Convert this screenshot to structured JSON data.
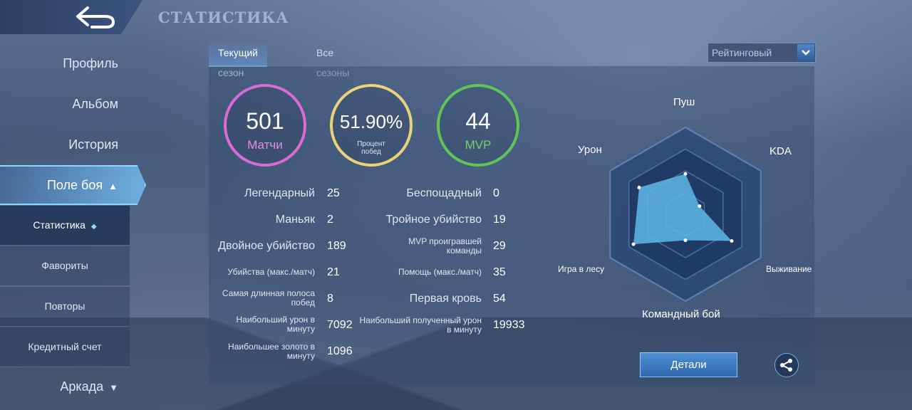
{
  "header": {
    "title": "СТАТИСТИКА"
  },
  "sidebar": {
    "items": [
      {
        "label": "Профиль"
      },
      {
        "label": "Альбом"
      },
      {
        "label": "История"
      },
      {
        "label": "Поле боя"
      }
    ],
    "sub_items": [
      {
        "label": "Статистика"
      },
      {
        "label": "Фавориты"
      },
      {
        "label": "Повторы"
      },
      {
        "label": "Кредитный счет"
      }
    ],
    "arcade": "Аркада"
  },
  "tabs": [
    {
      "label": "Текущий сезон"
    },
    {
      "label": "Все сезоны"
    }
  ],
  "mode_select": {
    "value": "Рейтинговый"
  },
  "summary": {
    "matches": {
      "value": "501",
      "label": "Матчи"
    },
    "winrate": {
      "value": "51.90%",
      "label": "Процент побед"
    },
    "mvp": {
      "value": "44",
      "label": "MVP"
    }
  },
  "stats_left": [
    {
      "label": "Легендарный",
      "value": "25"
    },
    {
      "label": "Маньяк",
      "value": "2"
    },
    {
      "label": "Двойное убийство",
      "value": "189"
    },
    {
      "label": "Убийства (макс./матч)",
      "value": "21"
    },
    {
      "label": "Самая длинная полоса побед",
      "value": "8"
    },
    {
      "label": "Наибольший урон в минуту",
      "value": "7092"
    },
    {
      "label": "Наибольшее золото в минуту",
      "value": "1096"
    }
  ],
  "stats_right": [
    {
      "label": "Беспощадный",
      "value": "0"
    },
    {
      "label": "Тройное убийство",
      "value": "19"
    },
    {
      "label": "MVP проигравшей команды",
      "value": "29"
    },
    {
      "label": "Помощь (макс./матч)",
      "value": "35"
    },
    {
      "label": "Первая кровь",
      "value": "54"
    },
    {
      "label": "Наибольший полученный урон в минуту",
      "value": "19933"
    }
  ],
  "radar": {
    "axes": [
      "Пуш",
      "KDA",
      "Выживание",
      "Командный бой",
      "Игра в лесу",
      "Урон"
    ],
    "values": [
      0.62,
      0.25,
      0.82,
      0.4,
      0.92,
      0.82
    ]
  },
  "buttons": {
    "details": "Детали"
  },
  "colors": {
    "matches_ring": "#d86bd6",
    "winrate_ring": "#e9d27a",
    "mvp_ring": "#5cc458",
    "radar_fill": "#5fb8e8"
  },
  "icons": {
    "back": "back-arrow-icon",
    "share": "share-icon",
    "dropdown": "chevron-down-icon"
  }
}
